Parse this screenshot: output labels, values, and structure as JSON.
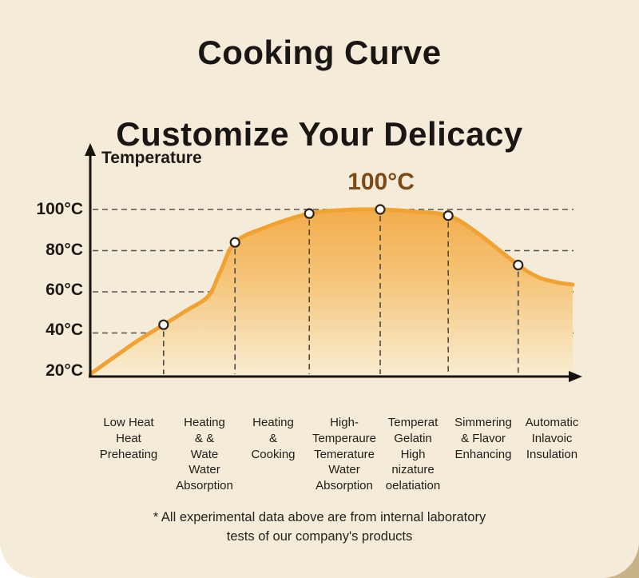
{
  "title": {
    "line1": "Cooking Curve",
    "line2": "Customize Your Delicacy"
  },
  "chart_data": {
    "type": "line",
    "title": "Cooking Curve",
    "ylabel": "Temperature",
    "peak_label": "100°C",
    "y_ticks": [
      "100°C",
      "80°C",
      "60°C",
      "40°C",
      "20°C"
    ],
    "y_tick_temps": [
      100,
      80,
      60,
      40,
      20
    ],
    "gridline_temps": [
      100,
      80,
      60,
      40
    ],
    "ylim": [
      20,
      108
    ],
    "x_axis_type": "categorical-stages",
    "x_stage_labels": [
      [
        "Low Heat",
        "Heat",
        "Preheating"
      ],
      [
        "Heating",
        "& &",
        "Wate",
        "Water",
        "Absorption"
      ],
      [
        "Heating",
        "&",
        "Cooking"
      ],
      [
        "High-",
        "Temperaure",
        "Temerature",
        "Water",
        "Absorption"
      ],
      [
        "Temperat",
        "Gelatin",
        "High",
        "nizature",
        "oelatiation"
      ],
      [
        "Simmering",
        "& Flavor",
        "Enhancing"
      ],
      [
        "Automatic",
        "Inlavoic",
        "Insulation"
      ]
    ],
    "markers": [
      {
        "x_frac": 0.152,
        "temp_c": 44
      },
      {
        "x_frac": 0.3,
        "temp_c": 84
      },
      {
        "x_frac": 0.454,
        "temp_c": 98
      },
      {
        "x_frac": 0.601,
        "temp_c": 100
      },
      {
        "x_frac": 0.742,
        "temp_c": 97
      },
      {
        "x_frac": 0.887,
        "temp_c": 73
      }
    ],
    "curve_shape": [
      [
        0.0,
        20
      ],
      [
        0.06,
        30
      ],
      [
        0.1,
        36.5
      ],
      [
        0.152,
        44
      ],
      [
        0.2,
        51
      ],
      [
        0.245,
        58
      ],
      [
        0.27,
        70
      ],
      [
        0.3,
        84
      ],
      [
        0.36,
        91
      ],
      [
        0.454,
        98
      ],
      [
        0.53,
        99.8
      ],
      [
        0.601,
        100
      ],
      [
        0.67,
        99
      ],
      [
        0.742,
        97
      ],
      [
        0.8,
        89
      ],
      [
        0.887,
        73
      ],
      [
        0.93,
        67
      ],
      [
        0.97,
        64.5
      ],
      [
        1.0,
        63.5
      ]
    ],
    "colors": {
      "curve_stroke": "#f0a232",
      "fill_top": "#f2ab49",
      "fill_mid": "#f5c478",
      "fill_bottom": "#f9ecd0",
      "axis": "#17130e",
      "dashed_grid": "#56524a",
      "marker_fill": "#ffffff",
      "marker_stroke": "#2e2315",
      "peak_label_color": "#7d4a15",
      "background": "#f4ebd8"
    },
    "legend": "none",
    "grid": "dashed"
  },
  "footnote": {
    "lines": [
      "* All experimental data above are from internal laboratory",
      "tests of our company's products"
    ]
  }
}
